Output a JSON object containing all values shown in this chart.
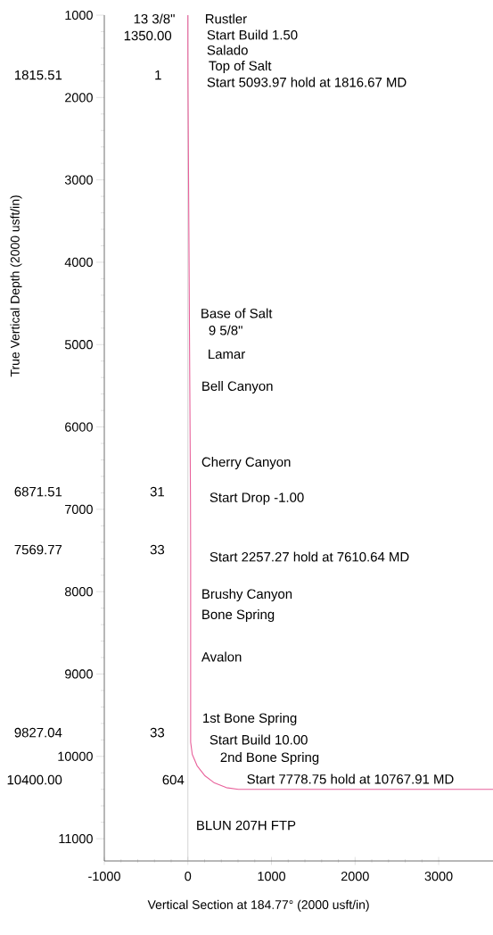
{
  "chart_data": {
    "type": "line",
    "xlabel": "Vertical Section at 184.77° (2000 usft/in)",
    "ylabel": "True Vertical Depth (2000 usft/in)",
    "series": [
      {
        "color": "#e8609a",
        "x": [
          0,
          0,
          1,
          31,
          33,
          33,
          52,
          110,
          200,
          318,
          460,
          604,
          3650
        ],
        "values": [
          1000,
          1350,
          1815.51,
          6871.51,
          7569.77,
          9827.04,
          9975,
          10114,
          10232,
          10323,
          10380,
          10400,
          10400
        ]
      }
    ],
    "xlim": [
      -1000,
      3650
    ],
    "ylim": [
      11270,
      1000
    ],
    "xticks": [
      -1000,
      0,
      1000,
      2000,
      3000
    ],
    "yticks": [
      1000,
      2000,
      3000,
      4000,
      5000,
      6000,
      7000,
      8000,
      9000,
      10000,
      11000
    ],
    "grid": false,
    "marker": "none",
    "line_style": "solid",
    "ref_lines": [
      {
        "axis": "x",
        "value": 0,
        "color": "#b8b8b8"
      }
    ],
    "annotations": [
      "13 3/8\"",
      "1350.00",
      "Rustler",
      "Start Build 1.50",
      "Salado",
      "Top of Salt",
      "Start 5093.97 hold at 1816.67 MD",
      "1815.51",
      "1",
      "Base of Salt",
      "9 5/8\"",
      "Lamar",
      "Bell Canyon",
      "Cherry Canyon",
      "6871.51",
      "31",
      "Start Drop -1.00",
      "7569.77",
      "33",
      "Start 2257.27 hold at 7610.64 MD",
      "Brushy Canyon",
      "Bone Spring",
      "Avalon",
      "1st Bone Spring",
      "9827.04",
      "33",
      "Start Build 10.00",
      "2nd Bone Spring",
      "10400.00",
      "604",
      "Start 7778.75 hold at 10767.91 MD",
      "BLUN 207H FTP"
    ]
  }
}
